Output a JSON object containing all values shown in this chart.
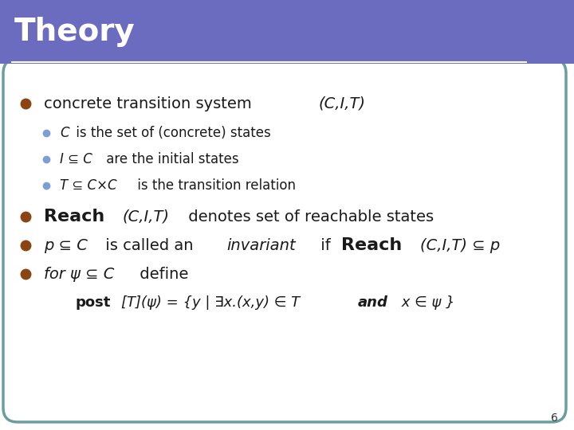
{
  "title": "Theory",
  "title_bg_color": "#6B6BBF",
  "title_text_color": "#FFFFFF",
  "slide_bg_color": "#FFFFFF",
  "card_border_color": "#6B9E9E",
  "card_bg_color": "#FFFFFF",
  "bullet_color_main": "#8B4513",
  "bullet_color_sub": "#7B9FD4",
  "text_color": "#1A1A1A",
  "page_number": "6",
  "lines": [
    {
      "level": 0,
      "text_parts": [
        {
          "text": "concrete transition system ",
          "style": "normal"
        },
        {
          "text": "(C,I,T)",
          "style": "italic"
        }
      ]
    },
    {
      "level": 1,
      "text_parts": [
        {
          "text": "C",
          "style": "italic"
        },
        {
          "text": " is the set of (concrete) states",
          "style": "normal"
        }
      ]
    },
    {
      "level": 1,
      "text_parts": [
        {
          "text": "I ⊆ C",
          "style": "italic"
        },
        {
          "text": " are the initial states",
          "style": "normal"
        }
      ]
    },
    {
      "level": 1,
      "text_parts": [
        {
          "text": "T ⊆ C×C",
          "style": "italic"
        },
        {
          "text": " is the transition relation",
          "style": "normal"
        }
      ]
    },
    {
      "level": 0,
      "text_parts": [
        {
          "text": "Reach",
          "style": "bold"
        },
        {
          "text": "(C,I,T)",
          "style": "italic_normal"
        },
        {
          "text": " denotes set of reachable states",
          "style": "normal"
        }
      ]
    },
    {
      "level": 0,
      "text_parts": [
        {
          "text": "p ⊆ C",
          "style": "italic"
        },
        {
          "text": " is called an ",
          "style": "normal"
        },
        {
          "text": "invariant",
          "style": "italic"
        },
        {
          "text": " if ",
          "style": "normal"
        },
        {
          "text": "Reach",
          "style": "bold"
        },
        {
          "text": "(C,I,T) ⊆ p",
          "style": "italic_normal"
        }
      ]
    },
    {
      "level": 0,
      "text_parts": [
        {
          "text": "for ψ ⊆ C",
          "style": "italic_normal"
        },
        {
          "text": " define",
          "style": "normal"
        }
      ]
    },
    {
      "level": 2,
      "text_parts": [
        {
          "text": "post",
          "style": "bold"
        },
        {
          "text": "[T](ψ) = {y | ∃x.(x,y) ∈ T ",
          "style": "italic_normal"
        },
        {
          "text": "and",
          "style": "italic_bold"
        },
        {
          "text": " x ∈ ψ }",
          "style": "italic_normal"
        }
      ]
    }
  ]
}
